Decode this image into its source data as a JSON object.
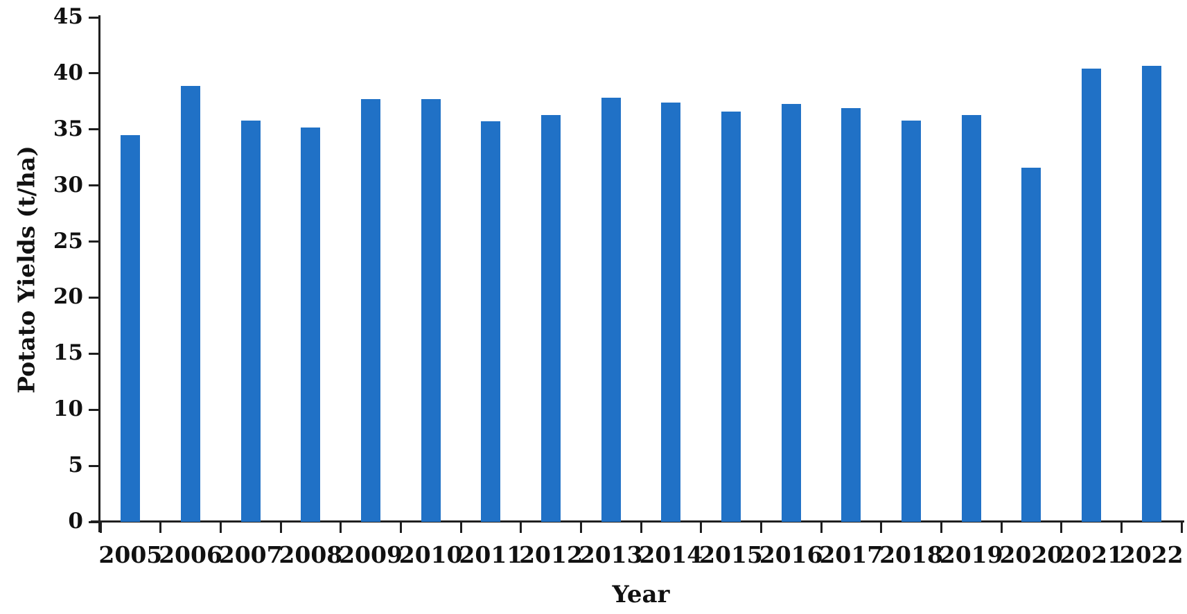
{
  "figure": {
    "background": "#ffffff"
  },
  "chart_data": {
    "type": "bar",
    "title": "",
    "xlabel": "Year",
    "ylabel": "Potato Yields (t/ha)",
    "categories": [
      "2005",
      "2006",
      "2007",
      "2008",
      "2009",
      "2010",
      "2011",
      "2012",
      "2013",
      "2014",
      "2015",
      "2016",
      "2017",
      "2018",
      "2019",
      "2020",
      "2021",
      "2022"
    ],
    "values": [
      34.5,
      38.9,
      35.8,
      35.2,
      37.7,
      37.7,
      35.7,
      36.3,
      37.8,
      37.4,
      36.6,
      37.3,
      36.9,
      35.8,
      36.3,
      31.6,
      40.4,
      40.7
    ],
    "ylim": [
      0,
      45
    ],
    "ytick_step": 5,
    "grid": false,
    "legend_position": "none",
    "bar_color": "#2071C6",
    "axis_color": "#1f1f1f",
    "text_color": "#111111"
  }
}
